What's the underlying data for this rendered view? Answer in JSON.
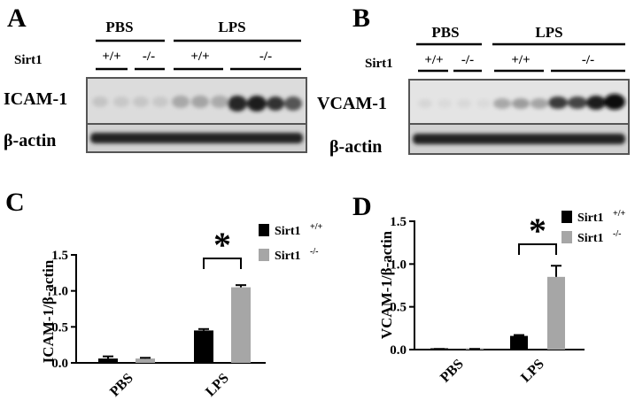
{
  "panel_labels": [
    "A",
    "B",
    "C",
    "D"
  ],
  "blots": [
    {
      "treatments": [
        "PBS",
        "LPS"
      ],
      "genotype_label": "Sirt1",
      "genotypes": [
        "+/+",
        "-/-",
        "+/+",
        "-/-"
      ],
      "rows": [
        "ICAM-1",
        "β-actin"
      ]
    },
    {
      "treatments": [
        "PBS",
        "LPS"
      ],
      "genotype_label": "Sirt1",
      "genotypes": [
        "+/+",
        "-/-",
        "+/+",
        "-/-"
      ],
      "rows": [
        "VCAM-1",
        "β-actin"
      ]
    }
  ],
  "chart_data": [
    {
      "type": "bar",
      "panel": "C",
      "categories": [
        "PBS",
        "LPS"
      ],
      "ylabel": "ICAM-1/β-actin",
      "ylim": [
        0,
        1.5
      ],
      "yticks": [
        "0.0",
        "0.5",
        "1.0",
        "1.5"
      ],
      "series": [
        {
          "name": "Sirt1",
          "sup": "+/+",
          "color": "#000000",
          "values": [
            0.06,
            0.45
          ],
          "errors": [
            0.03,
            0.02
          ]
        },
        {
          "name": "Sirt1",
          "sup": "-/-",
          "color": "#a6a6a6",
          "values": [
            0.06,
            1.05
          ],
          "errors": [
            0.01,
            0.03
          ]
        }
      ],
      "annotation": "*",
      "legend": "top-right"
    },
    {
      "type": "bar",
      "panel": "D",
      "categories": [
        "PBS",
        "LPS"
      ],
      "ylabel": "VCAM-1/β-actin",
      "ylim": [
        0,
        1.5
      ],
      "yticks": [
        "0.0",
        "0.5",
        "1.0",
        "1.5"
      ],
      "series": [
        {
          "name": "Sirt1",
          "sup": "+/+",
          "color": "#000000",
          "values": [
            0.005,
            0.16
          ],
          "errors": [
            0.003,
            0.01
          ]
        },
        {
          "name": "Sirt1",
          "sup": "-/-",
          "color": "#a6a6a6",
          "values": [
            0.005,
            0.85
          ],
          "errors": [
            0.003,
            0.13
          ]
        }
      ],
      "annotation": "*",
      "legend": "top-right"
    }
  ]
}
